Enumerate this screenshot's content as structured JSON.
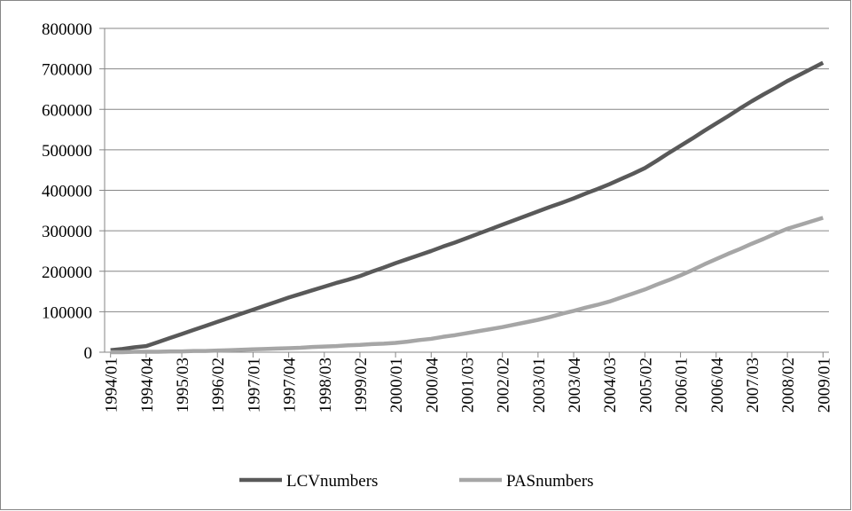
{
  "chart_data": {
    "type": "line",
    "categories": [
      "1994/01",
      null,
      null,
      "1994/04",
      null,
      null,
      "1995/03",
      null,
      null,
      "1996/02",
      null,
      null,
      "1997/01",
      null,
      null,
      "1997/04",
      null,
      null,
      "1998/03",
      null,
      null,
      "1999/02",
      null,
      null,
      "2000/01",
      null,
      null,
      "2000/04",
      null,
      null,
      "2001/03",
      null,
      null,
      "2002/02",
      null,
      null,
      "2003/01",
      null,
      null,
      "2003/04",
      null,
      null,
      "2004/03",
      null,
      null,
      "2005/02",
      null,
      null,
      "2006/01",
      null,
      null,
      "2006/04",
      null,
      null,
      "2007/03",
      null,
      null,
      "2008/02",
      null,
      null,
      "2009/01"
    ],
    "series": [
      {
        "name": "LCVnumbers",
        "color": "#595959",
        "values": [
          5000,
          8000,
          12000,
          15000,
          25000,
          35000,
          45000,
          55000,
          65000,
          75000,
          85000,
          95000,
          105000,
          115000,
          125000,
          135000,
          144000,
          153000,
          162000,
          171000,
          179000,
          188000,
          199000,
          209000,
          220000,
          230000,
          240000,
          250000,
          261000,
          271000,
          282000,
          293000,
          304000,
          315000,
          326000,
          337000,
          348000,
          359000,
          369000,
          380000,
          392000,
          403000,
          415000,
          428000,
          441000,
          455000,
          473000,
          492000,
          510000,
          528000,
          547000,
          565000,
          583000,
          602000,
          620000,
          637000,
          653000,
          670000,
          685000,
          700000,
          715000
        ]
      },
      {
        "name": "PASnumbers",
        "color": "#a6a6a6",
        "values": [
          0,
          0,
          1000,
          1000,
          1000,
          2000,
          2000,
          3000,
          3000,
          4000,
          5000,
          6000,
          7000,
          8000,
          9000,
          10000,
          11000,
          13000,
          14000,
          15000,
          17000,
          18000,
          20000,
          21000,
          23000,
          26000,
          30000,
          33000,
          38000,
          42000,
          47000,
          52000,
          57000,
          62000,
          68000,
          74000,
          80000,
          87000,
          95000,
          102000,
          110000,
          117000,
          125000,
          135000,
          145000,
          155000,
          167000,
          178000,
          190000,
          203000,
          217000,
          230000,
          243000,
          255000,
          268000,
          280000,
          293000,
          305000,
          314000,
          323000,
          332000
        ]
      }
    ],
    "ylim": [
      0,
      800000
    ],
    "yticks": [
      0,
      100000,
      200000,
      300000,
      400000,
      500000,
      600000,
      700000,
      800000
    ],
    "grid": true,
    "legend": "bottom"
  }
}
